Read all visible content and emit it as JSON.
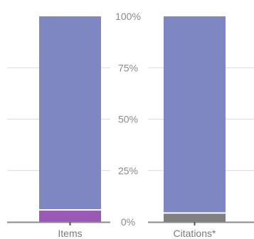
{
  "chart_data": {
    "type": "bar",
    "stacked": true,
    "normalized": true,
    "grid": true,
    "ylim": [
      0,
      100
    ],
    "yticks": [
      "0%",
      "25%",
      "50%",
      "75%",
      "100%"
    ],
    "panels": [
      {
        "category": "Items",
        "segments": [
          {
            "value": 5.5,
            "color": "#9b59b6"
          },
          {
            "value": 94.5,
            "color": "#7f87c2"
          }
        ]
      },
      {
        "category": "Citations*",
        "segments": [
          {
            "value": 4.0,
            "color": "#808080"
          },
          {
            "value": 96.0,
            "color": "#7f87c2"
          }
        ]
      }
    ]
  }
}
